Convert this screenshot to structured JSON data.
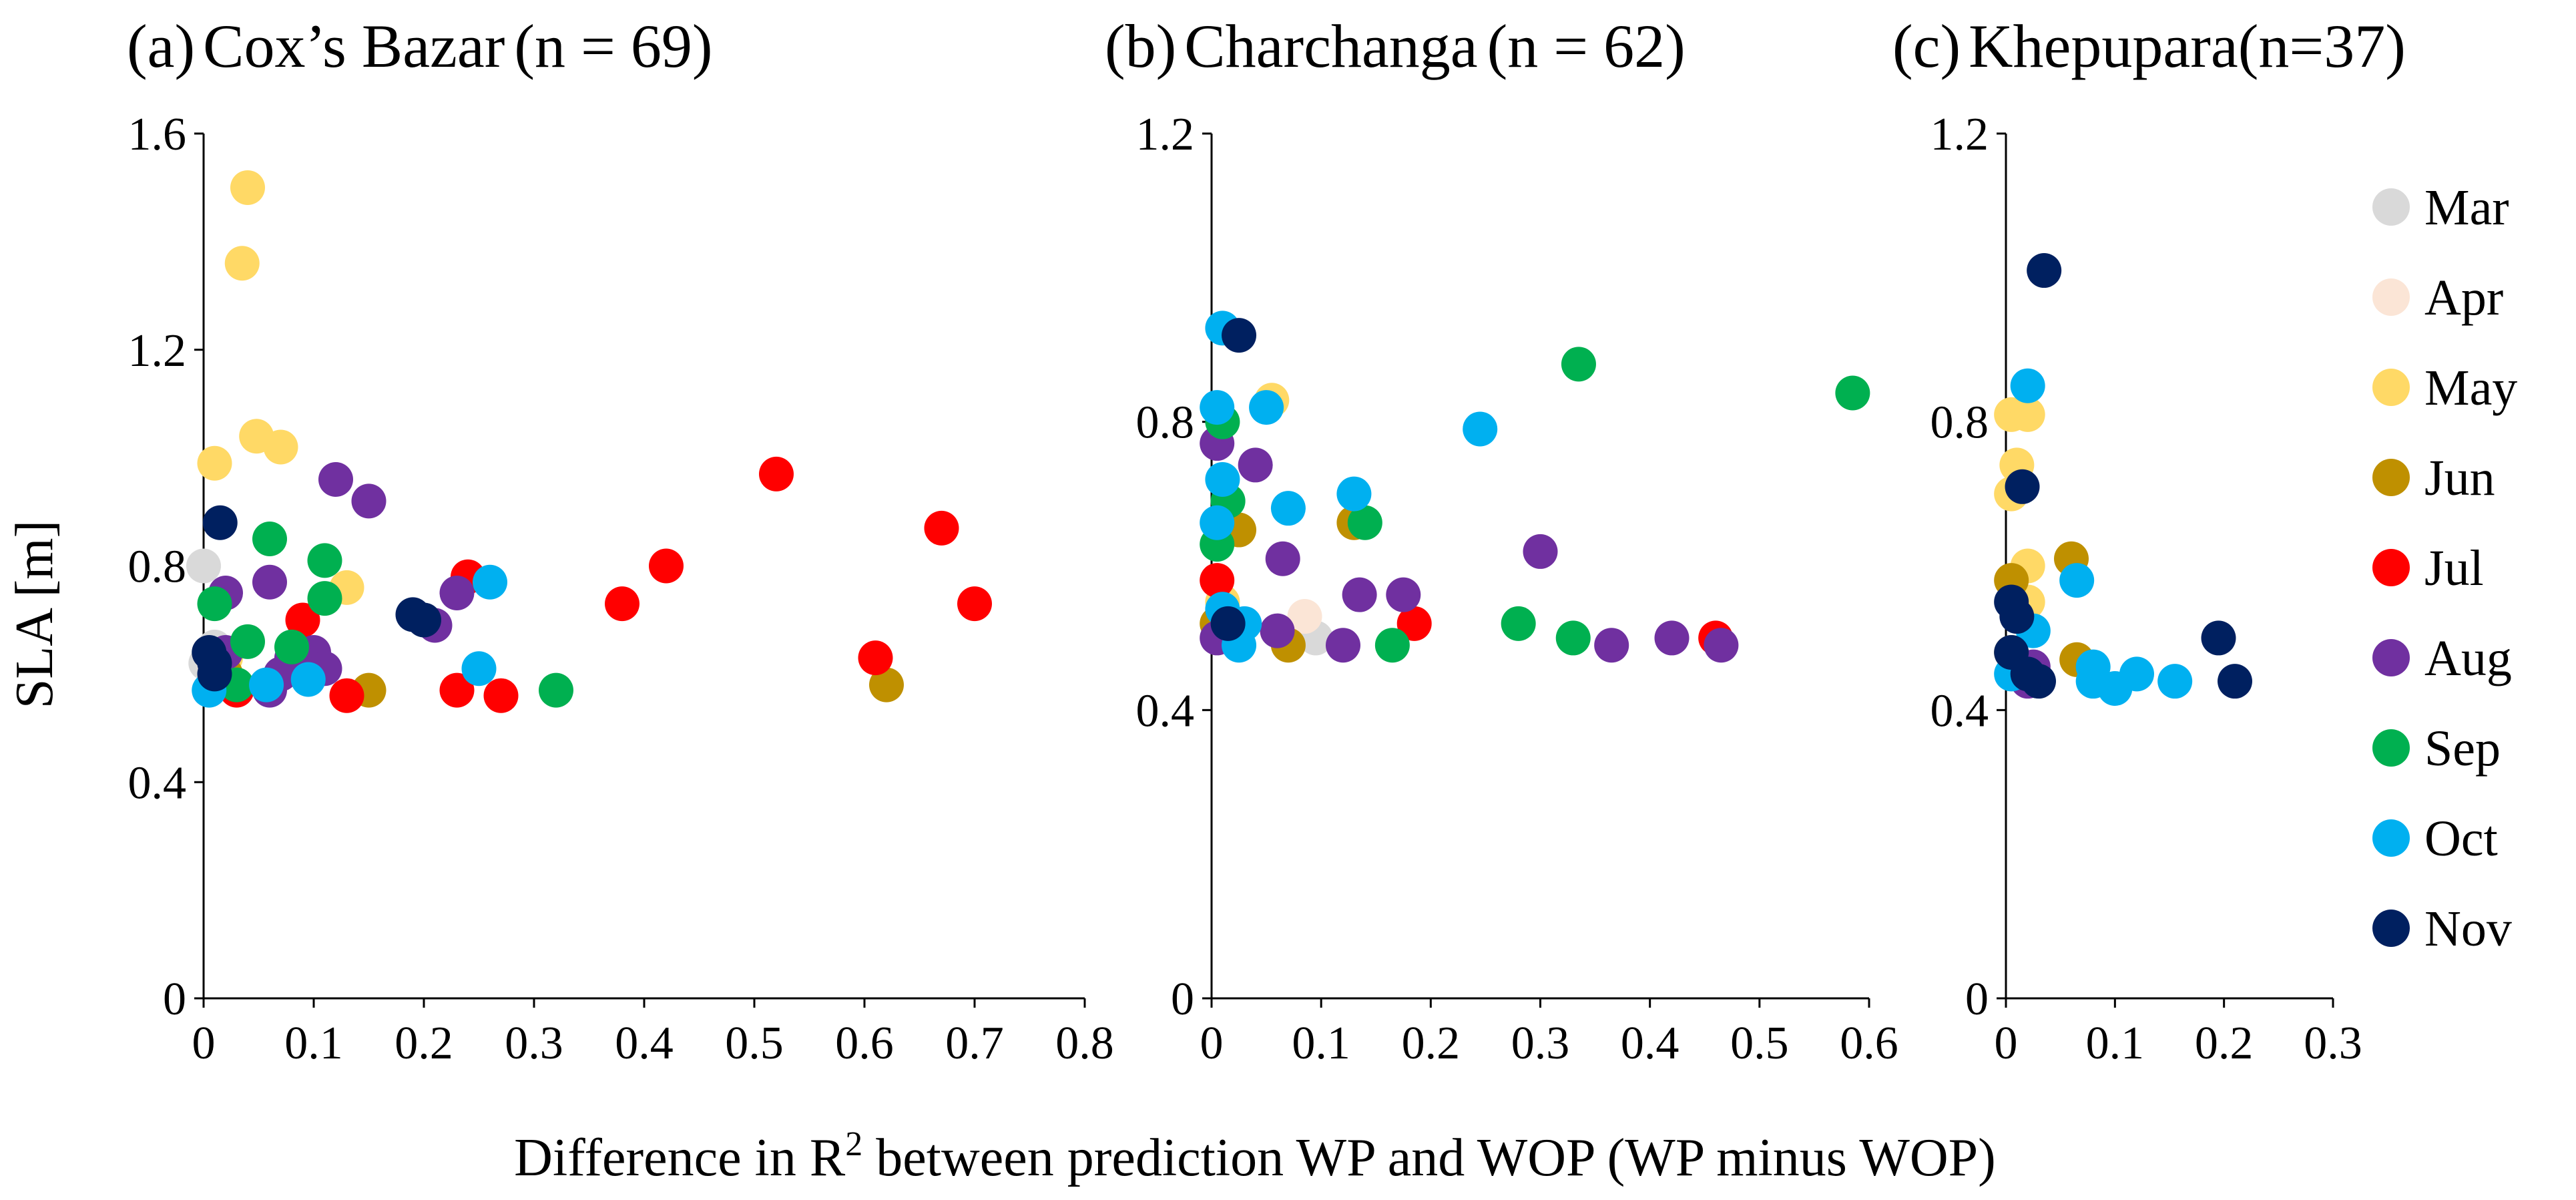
{
  "figure": {
    "xlabel_prefix": "Difference in R",
    "xlabel_sup": "2",
    "xlabel_suffix": " between prediction WP and WOP (WP minus WOP)",
    "ylabel": "SLA [m]"
  },
  "legend": [
    {
      "label": "Mar",
      "color": "#d9d9d9"
    },
    {
      "label": "Apr",
      "color": "#fbe5d6"
    },
    {
      "label": "May",
      "color": "#ffd966"
    },
    {
      "label": "Jun",
      "color": "#bf9000"
    },
    {
      "label": "Jul",
      "color": "#ff0000"
    },
    {
      "label": "Aug",
      "color": "#7030a0"
    },
    {
      "label": "Sep",
      "color": "#00b050"
    },
    {
      "label": "Oct",
      "color": "#00b0f0"
    },
    {
      "label": "Nov",
      "color": "#002060"
    }
  ],
  "chart_data": [
    {
      "type": "scatter",
      "title_prefix": "(a)",
      "title_name": "Cox’s Bazar",
      "title_n": "(n = 69)",
      "xlim": [
        0,
        0.8
      ],
      "ylim": [
        0,
        1.6
      ],
      "xticks": [
        "0",
        "0.1",
        "0.2",
        "0.3",
        "0.4",
        "0.5",
        "0.6",
        "0.7",
        "0.8"
      ],
      "yticks": [
        "0",
        "0.4",
        "0.8",
        "1.2",
        "1.6"
      ],
      "series": [
        {
          "name": "Mar",
          "points": [
            [
              0.0,
              0.8
            ],
            [
              0.01,
              0.65
            ],
            [
              0.002,
              0.62
            ]
          ]
        },
        {
          "name": "Apr",
          "points": [
            [
              0.005,
              0.64
            ],
            [
              0.01,
              0.61
            ]
          ]
        },
        {
          "name": "May",
          "points": [
            [
              0.04,
              1.5
            ],
            [
              0.035,
              1.36
            ],
            [
              0.048,
              1.04
            ],
            [
              0.07,
              1.02
            ],
            [
              0.01,
              0.99
            ],
            [
              0.13,
              0.76
            ],
            [
              0.02,
              0.63
            ]
          ]
        },
        {
          "name": "Jun",
          "points": [
            [
              0.15,
              0.57
            ],
            [
              0.62,
              0.58
            ],
            [
              0.02,
              0.6
            ]
          ]
        },
        {
          "name": "Jul",
          "points": [
            [
              0.52,
              0.97
            ],
            [
              0.67,
              0.87
            ],
            [
              0.42,
              0.8
            ],
            [
              0.24,
              0.78
            ],
            [
              0.38,
              0.73
            ],
            [
              0.7,
              0.73
            ],
            [
              0.09,
              0.7
            ],
            [
              0.61,
              0.63
            ],
            [
              0.13,
              0.56
            ],
            [
              0.23,
              0.57
            ],
            [
              0.27,
              0.56
            ],
            [
              0.03,
              0.57
            ]
          ]
        },
        {
          "name": "Aug",
          "points": [
            [
              0.12,
              0.96
            ],
            [
              0.15,
              0.92
            ],
            [
              0.02,
              0.75
            ],
            [
              0.06,
              0.77
            ],
            [
              0.23,
              0.75
            ],
            [
              0.21,
              0.69
            ],
            [
              0.1,
              0.64
            ],
            [
              0.08,
              0.63
            ],
            [
              0.02,
              0.64
            ],
            [
              0.07,
              0.6
            ],
            [
              0.11,
              0.61
            ],
            [
              0.06,
              0.57
            ]
          ]
        },
        {
          "name": "Sep",
          "points": [
            [
              0.06,
              0.85
            ],
            [
              0.11,
              0.81
            ],
            [
              0.01,
              0.73
            ],
            [
              0.11,
              0.74
            ],
            [
              0.04,
              0.66
            ],
            [
              0.08,
              0.65
            ],
            [
              0.03,
              0.58
            ],
            [
              0.32,
              0.57
            ]
          ]
        },
        {
          "name": "Oct",
          "points": [
            [
              0.26,
              0.77
            ],
            [
              0.25,
              0.61
            ],
            [
              0.095,
              0.59
            ],
            [
              0.057,
              0.58
            ],
            [
              0.005,
              0.57
            ]
          ]
        },
        {
          "name": "Nov",
          "points": [
            [
              0.015,
              0.88
            ],
            [
              0.19,
              0.71
            ],
            [
              0.2,
              0.7
            ],
            [
              0.005,
              0.64
            ],
            [
              0.01,
              0.62
            ],
            [
              0.01,
              0.6
            ]
          ]
        }
      ]
    },
    {
      "type": "scatter",
      "title_prefix": "(b)",
      "title_name": "Charchanga",
      "title_n": "(n = 62)",
      "xlim": [
        0,
        0.6
      ],
      "ylim": [
        0,
        1.2
      ],
      "xticks": [
        "0",
        "0.1",
        "0.2",
        "0.3",
        "0.4",
        "0.5",
        "0.6"
      ],
      "yticks": [
        "0",
        "0.4",
        "0.8",
        "1.2"
      ],
      "series": [
        {
          "name": "Mar",
          "points": [
            [
              0.095,
              0.5
            ]
          ]
        },
        {
          "name": "Apr",
          "points": [
            [
              0.085,
              0.53
            ]
          ]
        },
        {
          "name": "May",
          "points": [
            [
              0.055,
              0.83
            ],
            [
              0.01,
              0.55
            ]
          ]
        },
        {
          "name": "Jun",
          "points": [
            [
              0.025,
              0.65
            ],
            [
              0.13,
              0.66
            ],
            [
              0.005,
              0.52
            ],
            [
              0.07,
              0.49
            ]
          ]
        },
        {
          "name": "Jul",
          "points": [
            [
              0.005,
              0.58
            ],
            [
              0.185,
              0.52
            ],
            [
              0.46,
              0.5
            ]
          ]
        },
        {
          "name": "Aug",
          "points": [
            [
              0.005,
              0.77
            ],
            [
              0.04,
              0.74
            ],
            [
              0.065,
              0.61
            ],
            [
              0.3,
              0.62
            ],
            [
              0.135,
              0.56
            ],
            [
              0.175,
              0.56
            ],
            [
              0.06,
              0.51
            ],
            [
              0.12,
              0.49
            ],
            [
              0.365,
              0.49
            ],
            [
              0.42,
              0.5
            ],
            [
              0.465,
              0.49
            ],
            [
              0.005,
              0.5
            ]
          ]
        },
        {
          "name": "Sep",
          "points": [
            [
              0.335,
              0.88
            ],
            [
              0.585,
              0.84
            ],
            [
              0.01,
              0.8
            ],
            [
              0.015,
              0.69
            ],
            [
              0.005,
              0.63
            ],
            [
              0.14,
              0.66
            ],
            [
              0.28,
              0.52
            ],
            [
              0.33,
              0.5
            ],
            [
              0.165,
              0.49
            ]
          ]
        },
        {
          "name": "Oct",
          "points": [
            [
              0.01,
              0.93
            ],
            [
              0.005,
              0.82
            ],
            [
              0.05,
              0.82
            ],
            [
              0.245,
              0.79
            ],
            [
              0.01,
              0.72
            ],
            [
              0.07,
              0.68
            ],
            [
              0.13,
              0.7
            ],
            [
              0.005,
              0.66
            ],
            [
              0.03,
              0.52
            ],
            [
              0.025,
              0.49
            ],
            [
              0.01,
              0.54
            ]
          ]
        },
        {
          "name": "Nov",
          "points": [
            [
              0.025,
              0.92
            ],
            [
              0.015,
              0.52
            ]
          ]
        }
      ]
    },
    {
      "type": "scatter",
      "title_prefix": "(c)",
      "title_name": "Khepupara",
      "title_n": "(n=37)",
      "xlim": [
        0,
        0.3
      ],
      "ylim": [
        0,
        1.2
      ],
      "xticks": [
        "0",
        "0.1",
        "0.2",
        "0.3"
      ],
      "yticks": [
        "0",
        "0.4",
        "0.8",
        "1.2"
      ],
      "series": [
        {
          "name": "May",
          "points": [
            [
              0.005,
              0.81
            ],
            [
              0.02,
              0.81
            ],
            [
              0.01,
              0.74
            ],
            [
              0.005,
              0.7
            ],
            [
              0.02,
              0.6
            ],
            [
              0.02,
              0.55
            ]
          ]
        },
        {
          "name": "Jun",
          "points": [
            [
              0.06,
              0.61
            ],
            [
              0.005,
              0.58
            ],
            [
              0.005,
              0.48
            ],
            [
              0.065,
              0.47
            ]
          ]
        },
        {
          "name": "Aug",
          "points": [
            [
              0.025,
              0.46
            ],
            [
              0.02,
              0.44
            ]
          ]
        },
        {
          "name": "Oct",
          "points": [
            [
              0.02,
              0.85
            ],
            [
              0.065,
              0.58
            ],
            [
              0.025,
              0.51
            ],
            [
              0.08,
              0.46
            ],
            [
              0.12,
              0.45
            ],
            [
              0.155,
              0.44
            ],
            [
              0.1,
              0.43
            ],
            [
              0.005,
              0.45
            ],
            [
              0.08,
              0.44
            ]
          ]
        },
        {
          "name": "Nov",
          "points": [
            [
              0.035,
              1.01
            ],
            [
              0.015,
              0.71
            ],
            [
              0.005,
              0.55
            ],
            [
              0.01,
              0.53
            ],
            [
              0.005,
              0.48
            ],
            [
              0.195,
              0.5
            ],
            [
              0.21,
              0.44
            ],
            [
              0.03,
              0.44
            ],
            [
              0.02,
              0.45
            ]
          ]
        }
      ]
    }
  ]
}
